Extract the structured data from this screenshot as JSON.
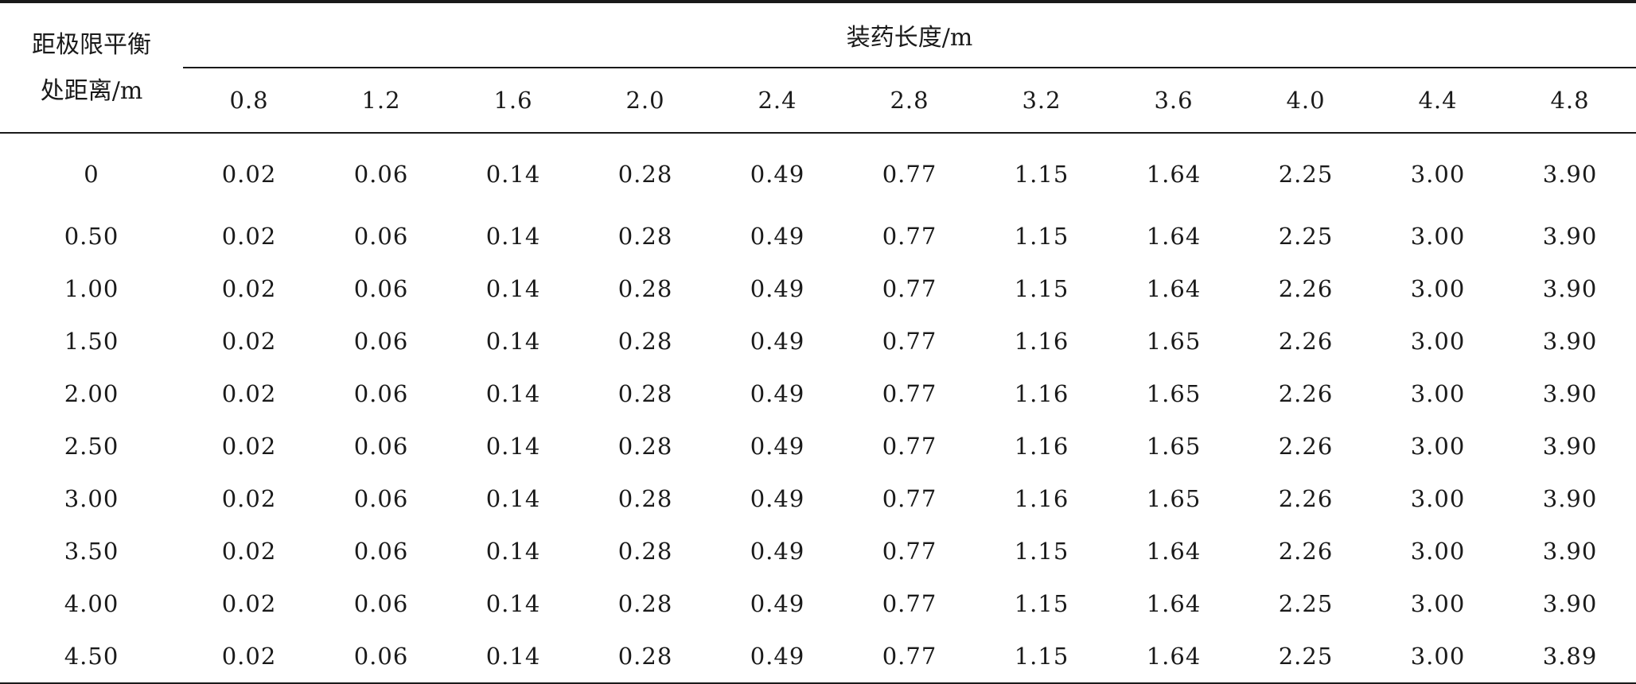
{
  "table": {
    "row_header_line1": "距极限平衡",
    "row_header_line2": "处距离/m",
    "group_header": "装药长度/m",
    "columns": [
      "0.8",
      "1.2",
      "1.6",
      "2.0",
      "2.4",
      "2.8",
      "3.2",
      "3.6",
      "4.0",
      "4.4",
      "4.8"
    ],
    "rows": [
      {
        "label": "0",
        "values": [
          "0.02",
          "0.06",
          "0.14",
          "0.28",
          "0.49",
          "0.77",
          "1.15",
          "1.64",
          "2.25",
          "3.00",
          "3.90"
        ]
      },
      {
        "label": "0.50",
        "values": [
          "0.02",
          "0.06",
          "0.14",
          "0.28",
          "0.49",
          "0.77",
          "1.15",
          "1.64",
          "2.25",
          "3.00",
          "3.90"
        ]
      },
      {
        "label": "1.00",
        "values": [
          "0.02",
          "0.06",
          "0.14",
          "0.28",
          "0.49",
          "0.77",
          "1.15",
          "1.64",
          "2.26",
          "3.00",
          "3.90"
        ]
      },
      {
        "label": "1.50",
        "values": [
          "0.02",
          "0.06",
          "0.14",
          "0.28",
          "0.49",
          "0.77",
          "1.16",
          "1.65",
          "2.26",
          "3.00",
          "3.90"
        ]
      },
      {
        "label": "2.00",
        "values": [
          "0.02",
          "0.06",
          "0.14",
          "0.28",
          "0.49",
          "0.77",
          "1.16",
          "1.65",
          "2.26",
          "3.00",
          "3.90"
        ]
      },
      {
        "label": "2.50",
        "values": [
          "0.02",
          "0.06",
          "0.14",
          "0.28",
          "0.49",
          "0.77",
          "1.16",
          "1.65",
          "2.26",
          "3.00",
          "3.90"
        ]
      },
      {
        "label": "3.00",
        "values": [
          "0.02",
          "0.06",
          "0.14",
          "0.28",
          "0.49",
          "0.77",
          "1.16",
          "1.65",
          "2.26",
          "3.00",
          "3.90"
        ]
      },
      {
        "label": "3.50",
        "values": [
          "0.02",
          "0.06",
          "0.14",
          "0.28",
          "0.49",
          "0.77",
          "1.15",
          "1.64",
          "2.26",
          "3.00",
          "3.90"
        ]
      },
      {
        "label": "4.00",
        "values": [
          "0.02",
          "0.06",
          "0.14",
          "0.28",
          "0.49",
          "0.77",
          "1.15",
          "1.64",
          "2.25",
          "3.00",
          "3.90"
        ]
      },
      {
        "label": "4.50",
        "values": [
          "0.02",
          "0.06",
          "0.14",
          "0.28",
          "0.49",
          "0.77",
          "1.15",
          "1.64",
          "2.25",
          "3.00",
          "3.89"
        ]
      }
    ]
  }
}
